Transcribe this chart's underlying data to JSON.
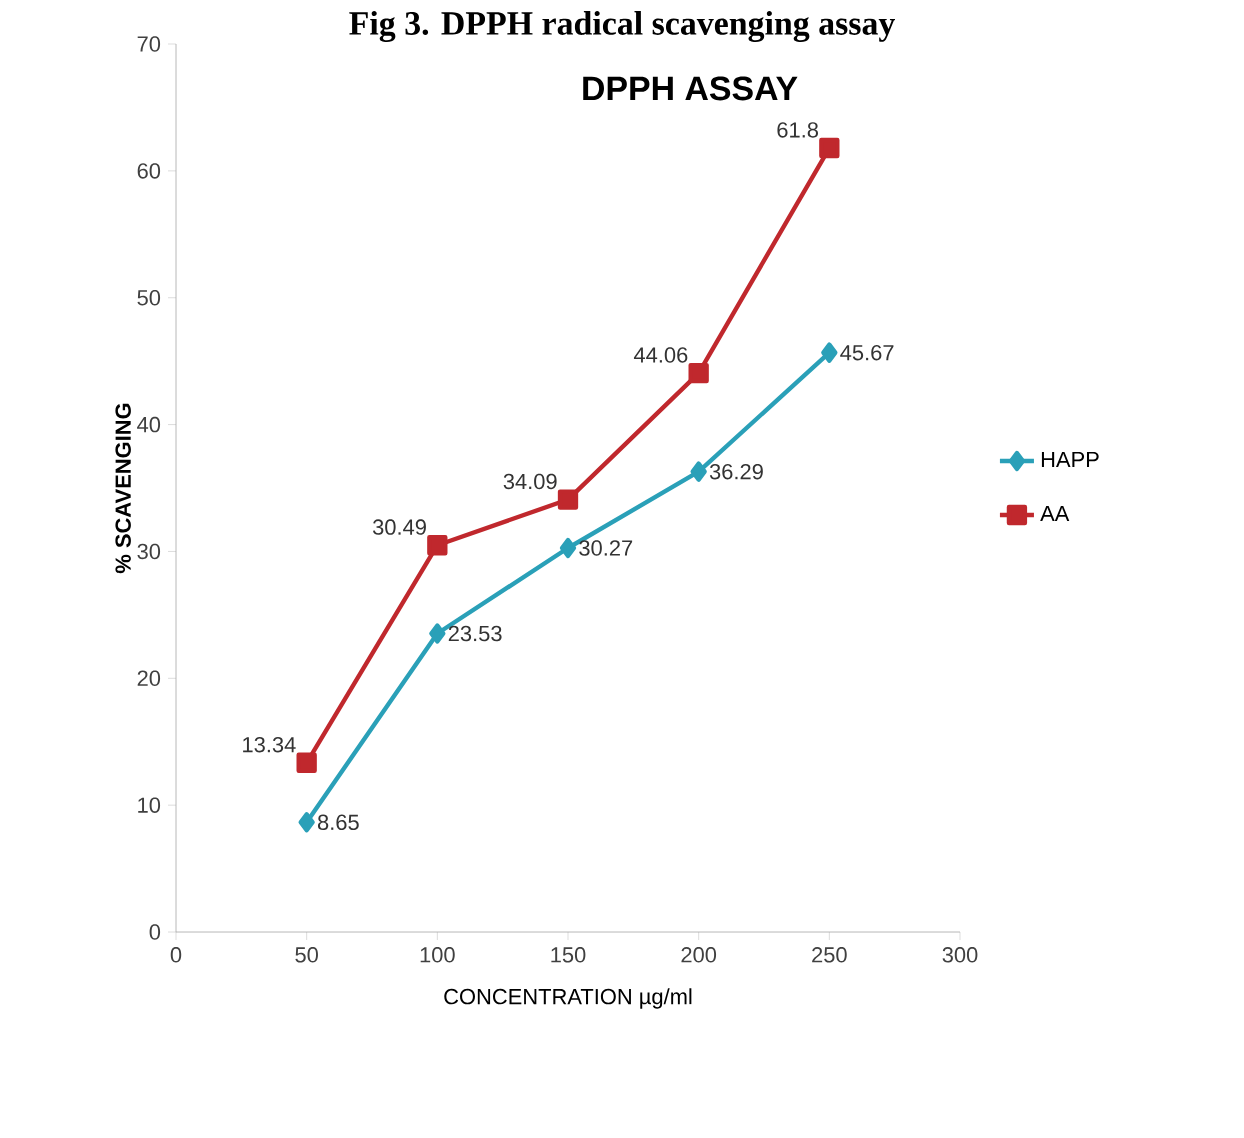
{
  "chart_data": {
    "type": "line",
    "title": "Fig 3. DPPH radical scavenging assay",
    "subtitle": "DPPH ASSAY",
    "xlabel": "CONCENTRATION µg/ml",
    "ylabel": "% SCAVENGING",
    "x": [
      50,
      100,
      150,
      200,
      250
    ],
    "series": [
      {
        "name": "HAPP",
        "color": "#2aa0b8",
        "marker": "diamond",
        "values": [
          8.65,
          23.53,
          30.27,
          36.29,
          45.67
        ]
      },
      {
        "name": "AA",
        "color": "#c0282d",
        "marker": "square",
        "values": [
          13.34,
          30.49,
          34.09,
          44.06,
          61.8
        ]
      }
    ],
    "xlim": [
      0,
      300
    ],
    "xticks": [
      0,
      50,
      100,
      150,
      200,
      250,
      300
    ],
    "ylim": [
      0,
      70
    ],
    "yticks": [
      0,
      10,
      20,
      30,
      40,
      50,
      60,
      70
    ],
    "data_labels": true,
    "legend": "right",
    "grid": false
  }
}
